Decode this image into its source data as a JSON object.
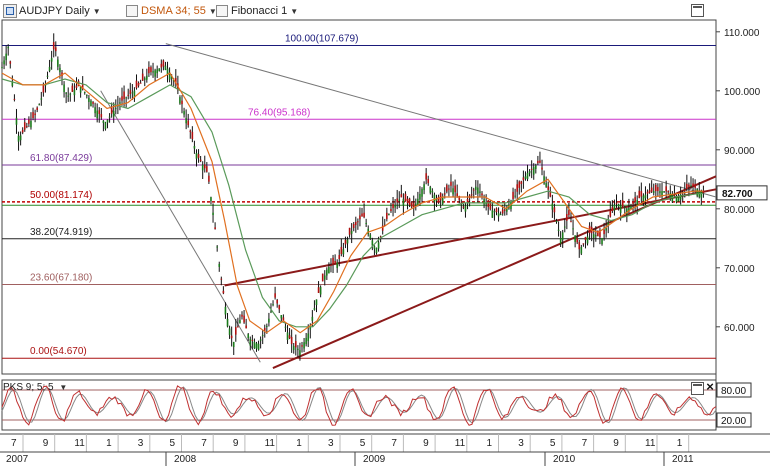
{
  "toolbar": {
    "symbol": "AUDJPY Daily",
    "indicator1": "DSMA 34; 55",
    "indicator2": "Fibonacci 1"
  },
  "subpanel": {
    "label": "PKS 9; 5; 5",
    "levels": [
      "80.00",
      "20.00"
    ]
  },
  "colors": {
    "fib_top": "#1a1a7a",
    "fib_76": "#cc33cc",
    "fib_61": "#7a3a9a",
    "fib_50": "#b00000",
    "fib_38": "#222222",
    "fib_23": "#a06060",
    "fib_0": "#aa1010",
    "trend": "#8b1a1a",
    "sma_fast": "#e07020",
    "sma_slow": "#5a9a5a",
    "price_badge_border": "#333333",
    "oscillator": "#c03030"
  },
  "chart_data": {
    "type": "candlestick",
    "title": "",
    "y_axis": {
      "min": 52,
      "max": 112,
      "ticks": [
        "110.000",
        "100.000",
        "90.000",
        "80.000",
        "70.000",
        "60.000"
      ]
    },
    "current_price": "82.700",
    "fibonacci": [
      {
        "label": "100.00(107.679)",
        "value": 107.679
      },
      {
        "label": "76.40(95.168)",
        "value": 95.168
      },
      {
        "label": "61.80(87.429)",
        "value": 87.429
      },
      {
        "label": "50.00(81.174)",
        "value": 81.174
      },
      {
        "label": "38.20(74.919)",
        "value": 74.919
      },
      {
        "label": "23.60(67.180)",
        "value": 67.18
      },
      {
        "label": "0.00(54.670)",
        "value": 54.67
      }
    ],
    "x_ticks": [
      "7",
      "9",
      "11",
      "1",
      "3",
      "5",
      "7",
      "9",
      "11",
      "1",
      "3",
      "5",
      "7",
      "9",
      "11",
      "1",
      "3",
      "5",
      "7",
      "9",
      "11",
      "1"
    ],
    "year_labels": [
      "2007",
      "2008",
      "2009",
      "2010",
      "2011"
    ],
    "price_path": [
      [
        0,
        104
      ],
      [
        0.3,
        107.5
      ],
      [
        0.8,
        92
      ],
      [
        1.6,
        96
      ],
      [
        2.0,
        100
      ],
      [
        2.5,
        107.6
      ],
      [
        3.1,
        99
      ],
      [
        3.7,
        101
      ],
      [
        4.3,
        98
      ],
      [
        4.9,
        94.5
      ],
      [
        5.6,
        98
      ],
      [
        6.3,
        100
      ],
      [
        7.0,
        103
      ],
      [
        7.8,
        104.3
      ],
      [
        8.3,
        101
      ],
      [
        8.8,
        95
      ],
      [
        9.3,
        89
      ],
      [
        9.8,
        86
      ],
      [
        10.1,
        78
      ],
      [
        10.4,
        69
      ],
      [
        10.7,
        62
      ],
      [
        11.0,
        57
      ],
      [
        11.4,
        62
      ],
      [
        11.8,
        58
      ],
      [
        12.2,
        57
      ],
      [
        12.6,
        60
      ],
      [
        13.0,
        65
      ],
      [
        13.4,
        61
      ],
      [
        13.8,
        57
      ],
      [
        14.2,
        56
      ],
      [
        14.6,
        59
      ],
      [
        15.0,
        65
      ],
      [
        15.5,
        70
      ],
      [
        16.0,
        71
      ],
      [
        16.6,
        76
      ],
      [
        17.2,
        79
      ],
      [
        17.8,
        73
      ],
      [
        18.4,
        79
      ],
      [
        19.0,
        82
      ],
      [
        19.6,
        80
      ],
      [
        20.2,
        85
      ],
      [
        20.8,
        81
      ],
      [
        21.4,
        84
      ],
      [
        22.0,
        80
      ],
      [
        22.6,
        84
      ],
      [
        23.2,
        80
      ],
      [
        23.8,
        79
      ],
      [
        24.4,
        82
      ],
      [
        25.0,
        86
      ],
      [
        25.6,
        88
      ],
      [
        26.2,
        81
      ],
      [
        26.6,
        75
      ],
      [
        27.0,
        79
      ],
      [
        27.5,
        73
      ],
      [
        28.0,
        76
      ],
      [
        28.6,
        75
      ],
      [
        29.2,
        81
      ],
      [
        29.8,
        80
      ],
      [
        30.4,
        82
      ],
      [
        31.0,
        83
      ],
      [
        31.6,
        83
      ],
      [
        32.2,
        82
      ],
      [
        32.8,
        84
      ],
      [
        33.4,
        82.7
      ]
    ],
    "sma_fast": [
      [
        0,
        103
      ],
      [
        1.0,
        101
      ],
      [
        2.0,
        101
      ],
      [
        3.0,
        103
      ],
      [
        4.0,
        100
      ],
      [
        5.0,
        97
      ],
      [
        6.0,
        98
      ],
      [
        7.0,
        101
      ],
      [
        8.0,
        103
      ],
      [
        9.0,
        97
      ],
      [
        10.0,
        88
      ],
      [
        10.6,
        78
      ],
      [
        11.2,
        67
      ],
      [
        11.8,
        61
      ],
      [
        12.6,
        59
      ],
      [
        13.4,
        61
      ],
      [
        14.2,
        59
      ],
      [
        15.0,
        61
      ],
      [
        15.8,
        66
      ],
      [
        16.6,
        72
      ],
      [
        17.4,
        76
      ],
      [
        18.2,
        77
      ],
      [
        19.0,
        79
      ],
      [
        20.0,
        81
      ],
      [
        21.0,
        82
      ],
      [
        22.0,
        82
      ],
      [
        23.0,
        82
      ],
      [
        24.0,
        80
      ],
      [
        25.0,
        83
      ],
      [
        26.0,
        85
      ],
      [
        26.8,
        81
      ],
      [
        27.6,
        77
      ],
      [
        28.4,
        76
      ],
      [
        29.2,
        78
      ],
      [
        30.0,
        80
      ],
      [
        31.0,
        82
      ],
      [
        32.0,
        82.5
      ],
      [
        33.0,
        83
      ],
      [
        33.4,
        83
      ]
    ],
    "sma_slow": [
      [
        0,
        102
      ],
      [
        1.0,
        101
      ],
      [
        2.0,
        101
      ],
      [
        3.0,
        102
      ],
      [
        4.0,
        101
      ],
      [
        5.0,
        98
      ],
      [
        6.0,
        97
      ],
      [
        7.0,
        99
      ],
      [
        8.0,
        101
      ],
      [
        9.0,
        99
      ],
      [
        10.0,
        93
      ],
      [
        10.8,
        84
      ],
      [
        11.6,
        73
      ],
      [
        12.4,
        65
      ],
      [
        13.2,
        61
      ],
      [
        14.0,
        60
      ],
      [
        14.8,
        60
      ],
      [
        15.6,
        63
      ],
      [
        16.4,
        67
      ],
      [
        17.2,
        72
      ],
      [
        18.0,
        75
      ],
      [
        19.0,
        77
      ],
      [
        20.0,
        79
      ],
      [
        21.0,
        80
      ],
      [
        22.0,
        81
      ],
      [
        23.0,
        81
      ],
      [
        24.0,
        81
      ],
      [
        25.0,
        82
      ],
      [
        26.0,
        83
      ],
      [
        27.0,
        82
      ],
      [
        28.0,
        79
      ],
      [
        29.0,
        78
      ],
      [
        30.0,
        79
      ],
      [
        31.0,
        81
      ],
      [
        32.0,
        82
      ],
      [
        33.0,
        82.5
      ],
      [
        33.4,
        82.6
      ]
    ],
    "trendlines": [
      {
        "name": "lower",
        "from": [
          12.9,
          53
        ],
        "to": [
          34.0,
          85.5
        ],
        "color": "trend"
      },
      {
        "name": "upper",
        "from": [
          10.6,
          67
        ],
        "to": [
          34.0,
          83.3
        ],
        "color": "trend"
      },
      {
        "name": "desc",
        "from": [
          7.8,
          108
        ],
        "to": [
          34.0,
          82
        ],
        "color": "gray"
      },
      {
        "name": "fan",
        "from": [
          4.7,
          100
        ],
        "to": [
          12.3,
          54
        ],
        "color": "gray"
      }
    ],
    "oscillator_range": [
      0,
      100
    ]
  }
}
